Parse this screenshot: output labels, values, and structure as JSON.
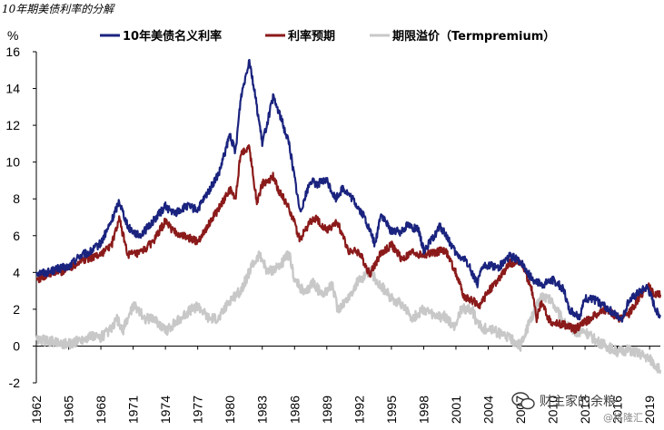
{
  "chart_data": {
    "type": "line",
    "title": "10年期美债利率的分解",
    "ylabel": "%",
    "ylim": [
      -2,
      16
    ],
    "yticks": [
      16,
      14,
      12,
      10,
      8,
      6,
      4,
      2,
      0,
      -2
    ],
    "xlim": [
      1962,
      2020
    ],
    "xticks": [
      "1962",
      "1965",
      "1968",
      "1971",
      "1974",
      "1977",
      "1980",
      "1983",
      "1986",
      "1989",
      "1992",
      "1995",
      "1998",
      "2001",
      "2004",
      "2007",
      "2010",
      "2013",
      "2016",
      "2019"
    ],
    "grid": false,
    "legend_position": "top",
    "series": [
      {
        "name": "10年美债名义利率",
        "color": "#1a237e",
        "x": [
          1962,
          1963,
          1964,
          1965,
          1966,
          1967,
          1968,
          1969,
          1969.7,
          1970.5,
          1971.5,
          1972,
          1973,
          1974,
          1974.8,
          1976,
          1977,
          1978,
          1979,
          1980,
          1980.5,
          1981,
          1981.8,
          1982.5,
          1983,
          1984,
          1984.5,
          1985.5,
          1986.5,
          1987.5,
          1988,
          1989,
          1989.8,
          1990.5,
          1991.5,
          1992.5,
          1993.5,
          1994,
          1994.9,
          1995.8,
          1996.5,
          1997.5,
          1998,
          1998.8,
          1999.5,
          2000,
          2001,
          2002,
          2003,
          2003.5,
          2004,
          2005,
          2006,
          2007,
          2008,
          2009,
          2010,
          2011,
          2011.5,
          2012,
          2012.5,
          2013,
          2014,
          2015,
          2016,
          2016.5,
          2017,
          2018,
          2018.8,
          2019.5,
          2020
        ],
        "values": [
          4.0,
          4.0,
          4.2,
          4.3,
          4.9,
          5.1,
          5.6,
          6.8,
          7.9,
          6.5,
          6.0,
          6.2,
          6.9,
          7.6,
          7.2,
          7.6,
          7.4,
          8.4,
          9.4,
          11.5,
          10.5,
          13.5,
          15.6,
          13.0,
          11.0,
          13.5,
          12.8,
          11.0,
          7.3,
          9.0,
          8.8,
          9.0,
          8.0,
          8.6,
          7.9,
          7.0,
          5.5,
          7.2,
          6.3,
          6.2,
          6.6,
          6.3,
          5.2,
          5.8,
          6.5,
          6.1,
          5.0,
          4.6,
          3.4,
          4.3,
          4.4,
          4.3,
          4.9,
          4.6,
          3.7,
          3.3,
          3.6,
          3.1,
          2.0,
          1.8,
          1.6,
          2.6,
          2.5,
          2.1,
          1.6,
          1.5,
          2.4,
          2.9,
          3.2,
          2.1,
          1.6
        ]
      },
      {
        "name": "利率预期",
        "color": "#8b1a1a",
        "x": [
          1962,
          1963,
          1964,
          1965,
          1966,
          1967,
          1968,
          1969,
          1969.7,
          1970.5,
          1971.5,
          1972,
          1973,
          1974,
          1974.8,
          1976,
          1977,
          1978,
          1979,
          1980,
          1980.5,
          1981,
          1981.8,
          1982.5,
          1983,
          1984,
          1984.5,
          1985.5,
          1986.5,
          1987.5,
          1988,
          1989,
          1990,
          1991,
          1992,
          1993,
          1994,
          1995,
          1996,
          1997,
          1998,
          1999,
          2000,
          2001,
          2001.8,
          2002.5,
          2003.3,
          2004,
          2005,
          2006,
          2007,
          2008,
          2008.5,
          2009,
          2009.5,
          2010,
          2011,
          2012,
          2013,
          2014,
          2015,
          2016,
          2017,
          2018,
          2018.8,
          2019.5,
          2020
        ],
        "values": [
          3.6,
          3.9,
          4.0,
          4.2,
          4.6,
          4.8,
          5.0,
          5.5,
          6.9,
          5.0,
          5.0,
          5.2,
          5.8,
          6.8,
          6.2,
          5.9,
          5.7,
          6.6,
          7.5,
          8.5,
          8.0,
          10.5,
          10.8,
          7.8,
          8.8,
          9.2,
          8.5,
          7.5,
          5.8,
          6.8,
          6.9,
          6.3,
          6.7,
          5.2,
          5.1,
          3.9,
          5.0,
          5.5,
          4.7,
          5.1,
          4.9,
          5.1,
          5.2,
          4.0,
          2.6,
          2.5,
          2.2,
          3.0,
          3.6,
          4.5,
          4.6,
          3.2,
          1.5,
          2.4,
          1.6,
          1.2,
          1.2,
          0.9,
          1.3,
          1.7,
          2.0,
          1.5,
          1.7,
          2.6,
          3.3,
          2.8,
          2.8
        ]
      },
      {
        "name": "期限溢价（Termpremium）",
        "color": "#c8c8c8",
        "x": [
          1962,
          1963,
          1964,
          1965,
          1966,
          1967,
          1968,
          1968.5,
          1969,
          1969.5,
          1970,
          1971,
          1971.5,
          1972,
          1973,
          1974,
          1975,
          1976,
          1977,
          1978,
          1979,
          1980,
          1981,
          1982,
          1982.8,
          1983.5,
          1984.5,
          1985.5,
          1986,
          1987,
          1987.7,
          1988.5,
          1989.5,
          1990,
          1991,
          1992,
          1993,
          1994,
          1995,
          1996,
          1997,
          1998,
          1999,
          2000,
          2000.8,
          2001.5,
          2002.5,
          2003,
          2003.6,
          2004,
          2005,
          2006,
          2007,
          2008,
          2009,
          2010,
          2011,
          2012,
          2013,
          2014,
          2015,
          2016,
          2017,
          2018,
          2019,
          2019.5,
          2020
        ],
        "values": [
          0.3,
          0.3,
          0.2,
          0.1,
          0.3,
          0.5,
          0.5,
          0.7,
          0.9,
          1.5,
          0.8,
          2.2,
          2.0,
          1.5,
          1.5,
          0.8,
          1.3,
          1.8,
          2.2,
          1.5,
          1.5,
          2.5,
          3.0,
          4.3,
          5.0,
          4.0,
          4.3,
          5.0,
          3.6,
          2.8,
          3.5,
          2.8,
          3.3,
          2.0,
          2.6,
          3.6,
          4.0,
          3.3,
          2.6,
          2.3,
          1.5,
          2.0,
          1.6,
          1.6,
          1.0,
          2.0,
          2.0,
          1.2,
          0.9,
          1.0,
          0.7,
          0.4,
          0.0,
          1.5,
          2.8,
          2.4,
          1.3,
          0.8,
          0.8,
          0.3,
          0.0,
          -0.3,
          -0.2,
          -0.4,
          -0.7,
          -1.0,
          -1.3
        ]
      }
    ]
  },
  "watermark": {
    "text": "财主家的余粮",
    "sub": "@格隆汇"
  }
}
